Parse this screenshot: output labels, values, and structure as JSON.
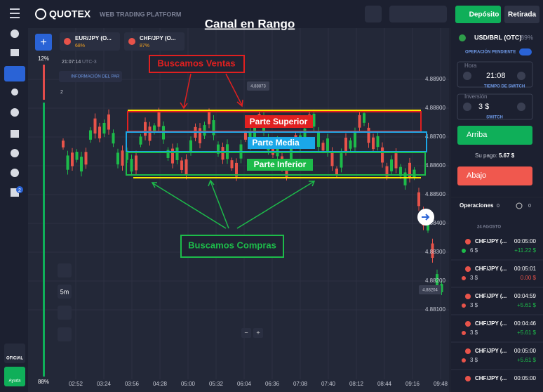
{
  "header": {
    "brand": "QUOTEX",
    "tagline": "WEB TRADING PLATFORM",
    "deposit": "Depósito",
    "withdraw": "Retirada"
  },
  "tabs": [
    {
      "name": "EUR/JPY (O...",
      "payout": "68%"
    },
    {
      "name": "CHF/JPY (O...",
      "payout": "87%"
    }
  ],
  "chart": {
    "title": "Canal en Rango",
    "pct_top": "12%",
    "pct_bottom": "88%",
    "time": "21:07:14",
    "tz": "UTC-3",
    "info": "INFORMACIÓN DEL PAR",
    "timeframe": "5m",
    "tag_high": "4.88873",
    "tag_low": "4.88204",
    "zoom_out": "−",
    "zoom_in": "+",
    "counter": "2",
    "price_ticks": [
      "4.88900",
      "4.88800",
      "4.88700",
      "4.88600",
      "4.88500",
      "4.88400",
      "4.88300",
      "4.88200",
      "4.88100"
    ],
    "time_ticks": [
      "02:52",
      "03:24",
      "03:56",
      "04:28",
      "05:00",
      "05:32",
      "06:04",
      "06:36",
      "07:08",
      "07:40",
      "08:12",
      "08:44",
      "09:16",
      "09:48"
    ],
    "sell": "Buscamos Ventas",
    "upper": "Parte Superior",
    "middle": "Parte Media",
    "lower": "Parte Inferior",
    "buy": "Buscamos Compras"
  },
  "sidebar": {
    "badge": "2",
    "official": "OFICIAL",
    "help": "Ayuda"
  },
  "panel": {
    "asset": "USD/BRL (OTC)",
    "payout": "89%",
    "pending": "OPERACIÓN PENDIENTE",
    "time_label": "Hora",
    "time_value": "21:08",
    "switch_time": "TIEMPO DE SWITCH",
    "invest_label": "Inversión",
    "invest_value": "3 $",
    "switch": "SWITCH",
    "up": "Arriba",
    "pay_label": "Su pago:",
    "pay_value": "5.67 $",
    "down": "Abajo"
  },
  "operations": {
    "title": "Operaciones",
    "count": "0",
    "count2": "0",
    "date": "24 AGOSTO",
    "items": [
      {
        "asset": "CHF/JPY (...",
        "time": "00:05:00",
        "amount": "6 $",
        "profit": "+11.22 $"
      },
      {
        "asset": "CHF/JPY (...",
        "time": "00:05:01",
        "amount": "3 $",
        "profit": "0.00 $"
      },
      {
        "asset": "CHF/JPY (...",
        "time": "00:04:59",
        "amount": "3 $",
        "profit": "+5.61 $"
      },
      {
        "asset": "CHF/JPY (...",
        "time": "00:04:46",
        "amount": "3 $",
        "profit": "+5.61 $"
      },
      {
        "asset": "CHF/JPY (...",
        "time": "00:05:00",
        "amount": "3 $",
        "profit": "+5.61 $"
      },
      {
        "asset": "CHF/JPY (...",
        "time": "00:05:00",
        "amount": "",
        "profit": ""
      }
    ]
  }
}
